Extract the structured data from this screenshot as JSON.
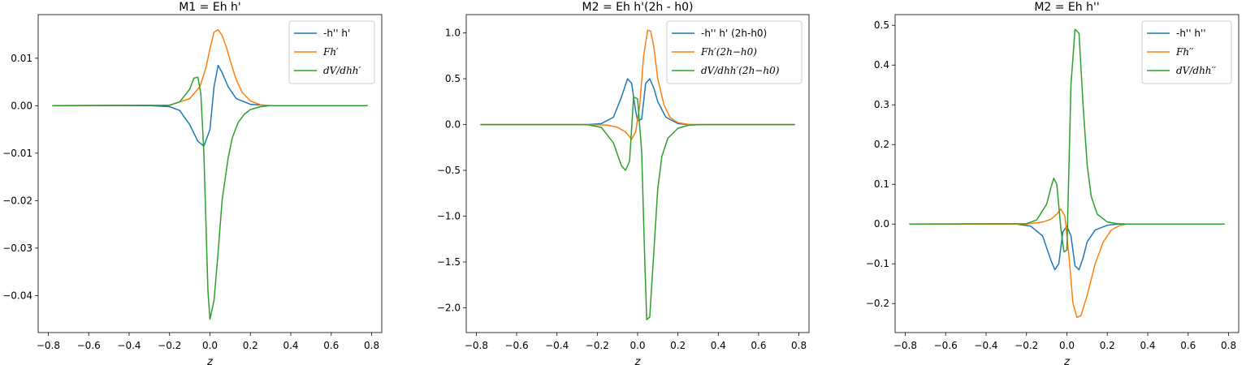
{
  "colors": {
    "blue": "#1f77b4",
    "orange": "#ff7f0e",
    "green": "#2ca02c"
  },
  "chart_data": [
    {
      "type": "line",
      "title": "M1 = Eh h'",
      "xlabel": "z",
      "xlim": [
        -0.85,
        0.85
      ],
      "ylim": [
        -0.0478,
        0.0192
      ],
      "xticks": [
        -0.8,
        -0.6,
        -0.4,
        -0.2,
        0.0,
        0.2,
        0.4,
        0.6,
        0.8
      ],
      "xtick_labels": [
        "−0.8",
        "−0.6",
        "−0.4",
        "−0.2",
        "0.0",
        "0.2",
        "0.4",
        "0.6",
        "0.8"
      ],
      "yticks": [
        0.01,
        0.0,
        -0.01,
        -0.02,
        -0.03,
        -0.04
      ],
      "ytick_labels": [
        "0.01",
        "0.00",
        "−0.01",
        "−0.02",
        "−0.03",
        "−0.04"
      ],
      "legend_position": "upper right",
      "series": [
        {
          "name": "-h'' h'",
          "color": "#1f77b4",
          "x": [
            -0.78,
            -0.3,
            -0.2,
            -0.15,
            -0.1,
            -0.06,
            -0.03,
            0.0,
            0.02,
            0.04,
            0.06,
            0.09,
            0.13,
            0.2,
            0.3,
            0.78
          ],
          "y": [
            0,
            0,
            -0.0002,
            -0.001,
            -0.004,
            -0.0075,
            -0.0085,
            -0.005,
            0.004,
            0.0085,
            0.007,
            0.004,
            0.0015,
            0.0003,
            0,
            0
          ]
        },
        {
          "name": "Fh′",
          "color": "#ff7f0e",
          "x": [
            -0.78,
            -0.2,
            -0.1,
            -0.05,
            -0.02,
            0.0,
            0.02,
            0.04,
            0.06,
            0.08,
            0.1,
            0.13,
            0.16,
            0.2,
            0.25,
            0.3,
            0.78
          ],
          "y": [
            0,
            0.0001,
            0.0015,
            0.004,
            0.008,
            0.012,
            0.0155,
            0.016,
            0.0148,
            0.0125,
            0.0095,
            0.0055,
            0.0028,
            0.001,
            0.0002,
            0,
            0
          ]
        },
        {
          "name": "dV/dhh′",
          "color": "#2ca02c",
          "x": [
            -0.78,
            -0.2,
            -0.15,
            -0.1,
            -0.08,
            -0.06,
            -0.045,
            -0.03,
            -0.01,
            0.0,
            0.02,
            0.04,
            0.06,
            0.09,
            0.11,
            0.14,
            0.17,
            0.2,
            0.25,
            0.3,
            0.78
          ],
          "y": [
            0,
            0.0001,
            0.0008,
            0.0035,
            0.0058,
            0.006,
            0.0025,
            -0.01,
            -0.039,
            -0.045,
            -0.041,
            -0.031,
            -0.02,
            -0.011,
            -0.0068,
            -0.0035,
            -0.0018,
            -0.0008,
            -0.0002,
            0,
            0
          ]
        }
      ]
    },
    {
      "type": "line",
      "title": "M2 = Eh h'(2h - h0)",
      "xlabel": "z",
      "xlim": [
        -0.85,
        0.85
      ],
      "ylim": [
        -2.27,
        1.2
      ],
      "xticks": [
        -0.8,
        -0.6,
        -0.4,
        -0.2,
        0.0,
        0.2,
        0.4,
        0.6,
        0.8
      ],
      "xtick_labels": [
        "−0.8",
        "−0.6",
        "−0.4",
        "−0.2",
        "0.0",
        "0.2",
        "0.4",
        "0.6",
        "0.8"
      ],
      "yticks": [
        1.0,
        0.5,
        0.0,
        -0.5,
        -1.0,
        -1.5,
        -2.0
      ],
      "ytick_labels": [
        "1.0",
        "0.5",
        "0.0",
        "−0.5",
        "−1.0",
        "−1.5",
        "−2.0"
      ],
      "legend_position": "upper right",
      "series": [
        {
          "name": "-h'' h' (2h-h0)",
          "color": "#1f77b4",
          "x": [
            -0.78,
            -0.25,
            -0.18,
            -0.12,
            -0.08,
            -0.05,
            -0.03,
            -0.01,
            0.0,
            0.02,
            0.04,
            0.06,
            0.08,
            0.1,
            0.14,
            0.2,
            0.25,
            0.78
          ],
          "y": [
            0,
            0,
            0.01,
            0.08,
            0.3,
            0.5,
            0.45,
            0.15,
            0.04,
            0.06,
            0.45,
            0.5,
            0.4,
            0.25,
            0.08,
            0.01,
            0,
            0
          ]
        },
        {
          "name": "Fh′(2h−h0)",
          "color": "#ff7f0e",
          "x": [
            -0.78,
            -0.25,
            -0.15,
            -0.1,
            -0.06,
            -0.03,
            -0.01,
            0.01,
            0.03,
            0.05,
            0.065,
            0.08,
            0.1,
            0.13,
            0.16,
            0.2,
            0.25,
            0.3,
            0.78
          ],
          "y": [
            0,
            0,
            -0.005,
            -0.03,
            -0.08,
            -0.16,
            -0.08,
            0.2,
            0.75,
            1.03,
            1.02,
            0.85,
            0.5,
            0.22,
            0.08,
            0.02,
            0.003,
            0,
            0
          ]
        },
        {
          "name": "dV/dhh′(2h−h0)",
          "color": "#2ca02c",
          "x": [
            -0.78,
            -0.25,
            -0.18,
            -0.12,
            -0.08,
            -0.06,
            -0.04,
            -0.02,
            0.0,
            0.02,
            0.035,
            0.045,
            0.06,
            0.08,
            0.1,
            0.12,
            0.15,
            0.2,
            0.25,
            0.3,
            0.78
          ],
          "y": [
            0,
            0,
            -0.03,
            -0.2,
            -0.45,
            -0.5,
            -0.4,
            0.3,
            0.28,
            -0.3,
            -1.45,
            -2.13,
            -2.1,
            -1.4,
            -0.7,
            -0.35,
            -0.15,
            -0.04,
            -0.008,
            0,
            0
          ]
        }
      ]
    },
    {
      "type": "line",
      "title": "M2 = Eh h''",
      "xlabel": "z",
      "xlim": [
        -0.85,
        0.85
      ],
      "ylim": [
        -0.273,
        0.527
      ],
      "xticks": [
        -0.8,
        -0.6,
        -0.4,
        -0.2,
        0.0,
        0.2,
        0.4,
        0.6,
        0.8
      ],
      "xtick_labels": [
        "−0.8",
        "−0.6",
        "−0.4",
        "−0.2",
        "0.0",
        "0.2",
        "0.4",
        "0.6",
        "0.8"
      ],
      "yticks": [
        0.5,
        0.4,
        0.3,
        0.2,
        0.1,
        0.0,
        -0.1,
        -0.2
      ],
      "ytick_labels": [
        "0.5",
        "0.4",
        "0.3",
        "0.2",
        "0.1",
        "0.0",
        "−0.1",
        "−0.2"
      ],
      "legend_position": "upper right",
      "series": [
        {
          "name": "-h'' h''",
          "color": "#1f77b4",
          "x": [
            -0.78,
            -0.25,
            -0.18,
            -0.12,
            -0.08,
            -0.06,
            -0.04,
            -0.02,
            0.0,
            0.02,
            0.04,
            0.06,
            0.08,
            0.1,
            0.14,
            0.2,
            0.25,
            0.78
          ],
          "y": [
            0,
            0,
            -0.005,
            -0.03,
            -0.09,
            -0.115,
            -0.1,
            -0.02,
            -0.005,
            -0.03,
            -0.105,
            -0.115,
            -0.085,
            -0.045,
            -0.015,
            -0.003,
            0,
            0
          ]
        },
        {
          "name": "Fh′′",
          "color": "#ff7f0e",
          "x": [
            -0.78,
            -0.2,
            -0.12,
            -0.08,
            -0.05,
            -0.03,
            -0.01,
            0.01,
            0.03,
            0.05,
            0.07,
            0.1,
            0.14,
            0.18,
            0.22,
            0.26,
            0.3,
            0.78
          ],
          "y": [
            0,
            0,
            0.005,
            0.012,
            0.025,
            0.038,
            0.02,
            -0.08,
            -0.2,
            -0.235,
            -0.23,
            -0.18,
            -0.1,
            -0.045,
            -0.015,
            -0.004,
            0,
            0
          ]
        },
        {
          "name": "dV/dhh′′",
          "color": "#2ca02c",
          "x": [
            -0.78,
            -0.2,
            -0.15,
            -0.1,
            -0.08,
            -0.065,
            -0.05,
            -0.03,
            -0.015,
            0.0,
            0.02,
            0.04,
            0.06,
            0.08,
            0.1,
            0.12,
            0.15,
            0.2,
            0.25,
            0.3,
            0.78
          ],
          "y": [
            0,
            0.001,
            0.01,
            0.05,
            0.09,
            0.115,
            0.1,
            -0.01,
            -0.07,
            -0.065,
            0.35,
            0.49,
            0.48,
            0.3,
            0.15,
            0.07,
            0.025,
            0.005,
            0.001,
            0,
            0
          ]
        }
      ]
    }
  ]
}
